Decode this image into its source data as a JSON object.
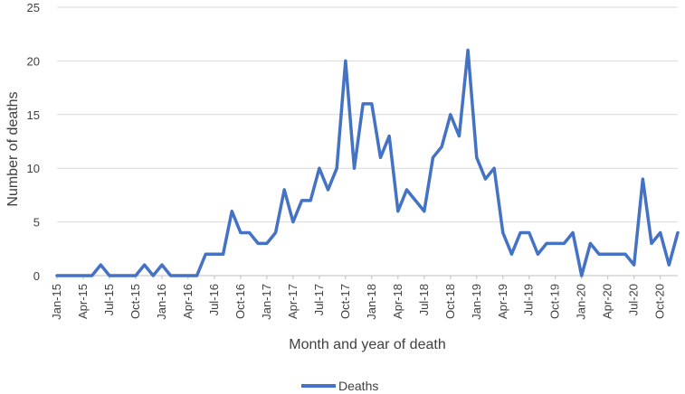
{
  "chart_data": {
    "type": "line",
    "title": "",
    "xlabel": "Month and year of death",
    "ylabel": "Number of deaths",
    "ylim": [
      0,
      25
    ],
    "yticks": [
      0,
      5,
      10,
      15,
      20,
      25
    ],
    "grid": true,
    "legend_position": "bottom",
    "x_tick_labels": [
      "Jan-15",
      "Apr-15",
      "Jul-15",
      "Oct-15",
      "Jan-16",
      "Apr-16",
      "Jul-16",
      "Oct-16",
      "Jan-17",
      "Apr-17",
      "Jul-17",
      "Oct-17",
      "Jan-18",
      "Apr-18",
      "Jul-18",
      "Oct-18",
      "Jan-19",
      "Apr-19",
      "Jul-19",
      "Oct-19",
      "Jan-20",
      "Apr-20",
      "Jul-20",
      "Oct-20"
    ],
    "series": [
      {
        "name": "Deaths",
        "color": "#4472c4",
        "values": [
          0,
          0,
          0,
          0,
          0,
          1,
          0,
          0,
          0,
          0,
          1,
          0,
          1,
          0,
          0,
          0,
          0,
          2,
          2,
          2,
          6,
          4,
          4,
          3,
          3,
          4,
          8,
          5,
          7,
          7,
          10,
          8,
          10,
          20,
          10,
          16,
          16,
          11,
          13,
          6,
          8,
          7,
          6,
          11,
          12,
          15,
          13,
          21,
          11,
          9,
          10,
          4,
          2,
          4,
          4,
          2,
          3,
          3,
          3,
          4,
          0,
          3,
          2,
          2,
          2,
          2,
          1,
          9,
          3,
          4,
          1,
          4
        ]
      }
    ]
  }
}
